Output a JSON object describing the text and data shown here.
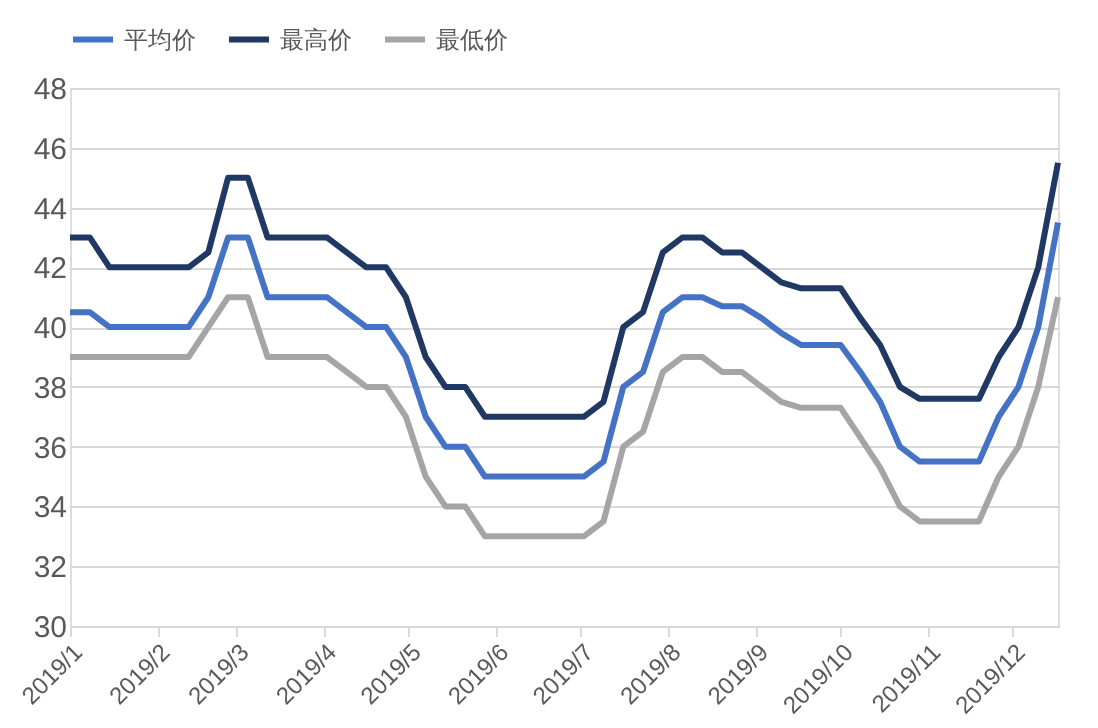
{
  "chart_data": {
    "type": "line",
    "x": [
      "2019-01-01",
      "2019-01-08",
      "2019-01-15",
      "2019-01-22",
      "2019-01-29",
      "2019-02-05",
      "2019-02-12",
      "2019-02-19",
      "2019-02-26",
      "2019-03-05",
      "2019-03-12",
      "2019-03-19",
      "2019-03-26",
      "2019-04-02",
      "2019-04-09",
      "2019-04-16",
      "2019-04-23",
      "2019-04-30",
      "2019-05-07",
      "2019-05-14",
      "2019-05-21",
      "2019-05-28",
      "2019-06-04",
      "2019-06-11",
      "2019-06-18",
      "2019-06-25",
      "2019-07-02",
      "2019-07-09",
      "2019-07-16",
      "2019-07-23",
      "2019-07-30",
      "2019-08-06",
      "2019-08-13",
      "2019-08-20",
      "2019-08-27",
      "2019-09-03",
      "2019-09-10",
      "2019-09-17",
      "2019-09-24",
      "2019-10-01",
      "2019-10-08",
      "2019-10-15",
      "2019-10-22",
      "2019-10-29",
      "2019-11-05",
      "2019-11-12",
      "2019-11-19",
      "2019-11-26",
      "2019-12-03",
      "2019-12-10",
      "2019-12-17"
    ],
    "series": [
      {
        "name": "平均价",
        "color": "#4472c4",
        "values": [
          40.5,
          40.5,
          40,
          40,
          40,
          40,
          40,
          41,
          43,
          43,
          41,
          41,
          41,
          41,
          40.5,
          40,
          40,
          39,
          37,
          36,
          36,
          35,
          35,
          35,
          35,
          35,
          35,
          35.5,
          38,
          38.5,
          40.5,
          41,
          41,
          40.7,
          40.7,
          40.3,
          39.8,
          39.4,
          39.4,
          39.4,
          38.5,
          37.5,
          36,
          35.5,
          35.5,
          35.5,
          35.5,
          37,
          38,
          40,
          43.5
        ]
      },
      {
        "name": "最高价",
        "color": "#203864",
        "values": [
          43,
          43,
          42,
          42,
          42,
          42,
          42,
          42.5,
          45,
          45,
          43,
          43,
          43,
          43,
          42.5,
          42,
          42,
          41,
          39,
          38,
          38,
          37,
          37,
          37,
          37,
          37,
          37,
          37.5,
          40,
          40.5,
          42.5,
          43,
          43,
          42.5,
          42.5,
          42,
          41.5,
          41.3,
          41.3,
          41.3,
          40.3,
          39.4,
          38,
          37.6,
          37.6,
          37.6,
          37.6,
          39,
          40,
          42,
          45.5
        ]
      },
      {
        "name": "最低价",
        "color": "#a5a5a5",
        "values": [
          39,
          39,
          39,
          39,
          39,
          39,
          39,
          40,
          41,
          41,
          39,
          39,
          39,
          39,
          38.5,
          38,
          38,
          37,
          35,
          34,
          34,
          33,
          33,
          33,
          33,
          33,
          33,
          33.5,
          36,
          36.5,
          38.5,
          39,
          39,
          38.5,
          38.5,
          38,
          37.5,
          37.3,
          37.3,
          37.3,
          36.3,
          35.3,
          34,
          33.5,
          33.5,
          33.5,
          33.5,
          35,
          36,
          38,
          41
        ]
      }
    ],
    "xlim": [
      "2019-01-01",
      "2019-12-17"
    ],
    "xticks": [
      {
        "value": "2019-01-01",
        "label": "2019/1"
      },
      {
        "value": "2019-02-01",
        "label": "2019/2"
      },
      {
        "value": "2019-03-01",
        "label": "2019/3"
      },
      {
        "value": "2019-04-01",
        "label": "2019/4"
      },
      {
        "value": "2019-05-01",
        "label": "2019/5"
      },
      {
        "value": "2019-06-01",
        "label": "2019/6"
      },
      {
        "value": "2019-07-01",
        "label": "2019/7"
      },
      {
        "value": "2019-08-01",
        "label": "2019/8"
      },
      {
        "value": "2019-09-01",
        "label": "2019/9"
      },
      {
        "value": "2019-10-01",
        "label": "2019/10"
      },
      {
        "value": "2019-11-01",
        "label": "2019/11"
      },
      {
        "value": "2019-12-01",
        "label": "2019/12"
      }
    ],
    "ylim": [
      30,
      48
    ],
    "yticks": [
      30,
      32,
      34,
      36,
      38,
      40,
      42,
      44,
      46,
      48
    ],
    "grid": "y",
    "legend": "top",
    "marker": "none",
    "line_style": "solid"
  }
}
